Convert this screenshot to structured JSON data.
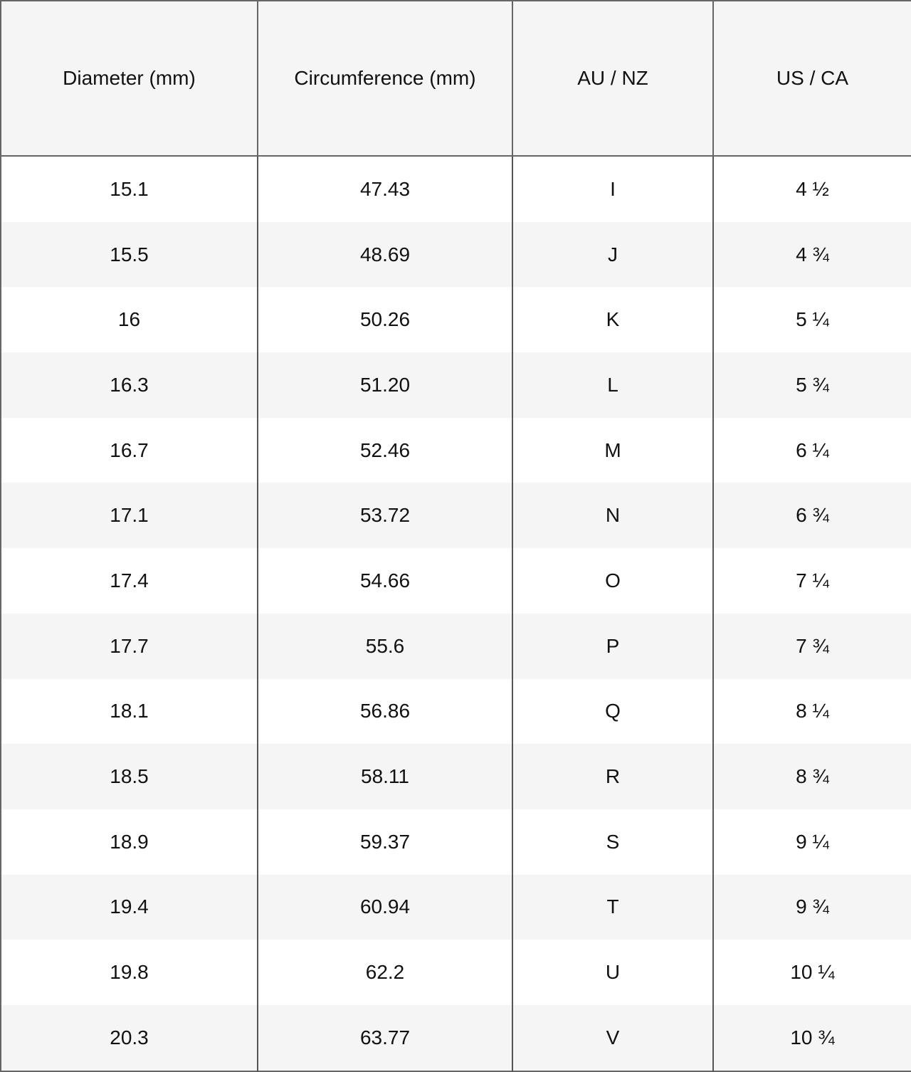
{
  "headers": [
    "Diameter (mm)",
    "Circumference (mm)",
    "AU / NZ",
    "US / CA"
  ],
  "rows": [
    [
      "15.1",
      "47.43",
      "I",
      "4 ½"
    ],
    [
      "15.5",
      "48.69",
      "J",
      "4 ¾"
    ],
    [
      "16",
      "50.26",
      "K",
      "5 ¼"
    ],
    [
      "16.3",
      "51.20",
      "L",
      "5 ¾"
    ],
    [
      "16.7",
      "52.46",
      "M",
      "6 ¼"
    ],
    [
      "17.1",
      "53.72",
      "N",
      "6 ¾"
    ],
    [
      "17.4",
      "54.66",
      "O",
      "7 ¼"
    ],
    [
      "17.7",
      "55.6",
      "P",
      "7 ¾"
    ],
    [
      "18.1",
      "56.86",
      "Q",
      "8 ¼"
    ],
    [
      "18.5",
      "58.11",
      "R",
      "8 ¾"
    ],
    [
      "18.9",
      "59.37",
      "S",
      "9 ¼"
    ],
    [
      "19.4",
      "60.94",
      "T",
      "9 ¾"
    ],
    [
      "19.8",
      "62.2",
      "U",
      "10 ¼"
    ],
    [
      "20.3",
      "63.77",
      "V",
      "10 ¾"
    ]
  ]
}
